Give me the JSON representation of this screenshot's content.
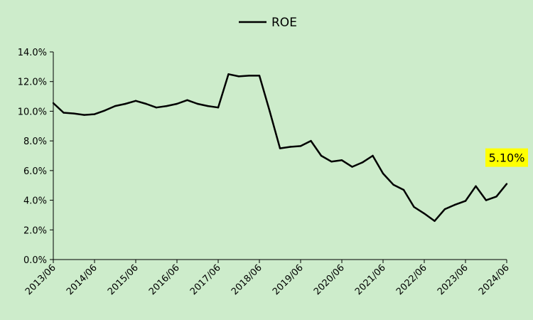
{
  "chart_data": {
    "type": "line",
    "title": "",
    "xlabel": "",
    "ylabel": "",
    "legend": {
      "position": "top-center"
    },
    "grid": false,
    "ylim": [
      0,
      14
    ],
    "ytick_values": [
      0,
      2,
      4,
      6,
      8,
      10,
      12,
      14
    ],
    "ytick_labels": [
      "0.0%",
      "2.0%",
      "4.0%",
      "6.0%",
      "8.0%",
      "10.0%",
      "12.0%",
      "14.0%"
    ],
    "xlim": [
      0,
      44
    ],
    "xtick_positions": [
      0,
      4,
      8,
      12,
      16,
      20,
      24,
      28,
      32,
      36,
      40,
      44
    ],
    "xtick_labels": [
      "2013/06",
      "2014/06",
      "2015/06",
      "2016/06",
      "2017/06",
      "2018/06",
      "2019/06",
      "2020/06",
      "2021/06",
      "2022/06",
      "2023/06",
      "2024/06"
    ],
    "series": [
      {
        "name": "ROE",
        "color": "#000000",
        "values": [
          10.55,
          9.9,
          9.85,
          9.75,
          9.8,
          10.05,
          10.35,
          10.5,
          10.7,
          10.5,
          10.25,
          10.35,
          10.5,
          10.75,
          10.5,
          10.35,
          10.25,
          12.5,
          12.35,
          12.4,
          12.4,
          10.0,
          7.5,
          7.6,
          7.65,
          8.0,
          7.0,
          6.6,
          6.7,
          6.25,
          6.55,
          7.0,
          5.8,
          5.05,
          4.7,
          3.55,
          3.1,
          2.6,
          3.4,
          3.7,
          3.95,
          4.95,
          4.0,
          4.25,
          5.1
        ]
      }
    ],
    "annotations": [
      {
        "label": "5.10%",
        "index": 44,
        "background": "#ffff00"
      }
    ]
  }
}
